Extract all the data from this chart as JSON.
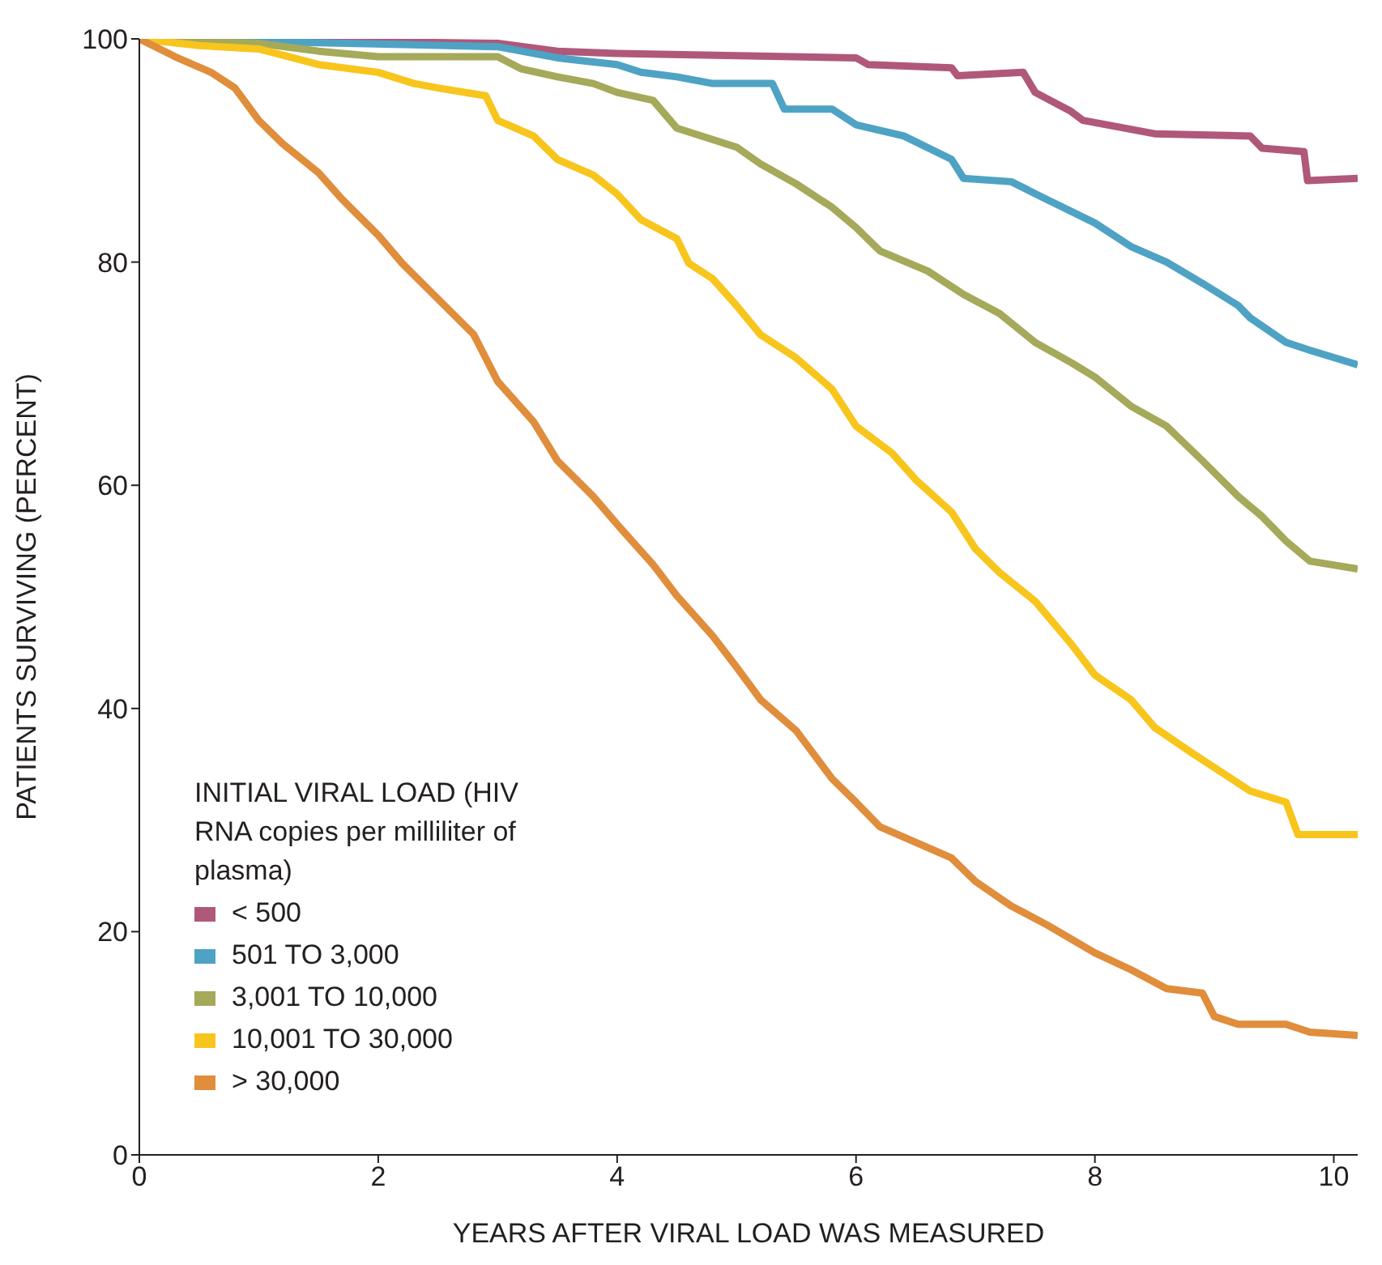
{
  "chart_data": {
    "type": "line",
    "xlabel": "YEARS AFTER VIRAL LOAD WAS MEASURED",
    "ylabel": "PATIENTS SURVIVING (PERCENT)",
    "legend_title": "INITIAL VIRAL LOAD (HIV RNA copies per milliliter of plasma)",
    "legend": "bottom left",
    "grid": false,
    "marker": "none",
    "line_style": "solid",
    "xlim": [
      0,
      10.2
    ],
    "ylim": [
      0,
      100
    ],
    "xticks": [
      0,
      2,
      4,
      6,
      8,
      10
    ],
    "yticks": [
      0,
      20,
      40,
      60,
      80,
      100
    ],
    "series": [
      {
        "name": "< 500",
        "color": "#b0587a",
        "x": [
          0,
          3,
          3.5,
          4,
          6,
          6.1,
          6.8,
          6.85,
          7.4,
          7.5,
          7.8,
          7.9,
          8.5,
          9.3,
          9.4,
          9.75,
          9.78,
          10.2
        ],
        "values": [
          100,
          99.6,
          98.9,
          98.7,
          98.3,
          97.7,
          97.4,
          96.7,
          97,
          95.2,
          93.5,
          92.7,
          91.5,
          91.3,
          90.2,
          89.9,
          87.3,
          87.5
        ]
      },
      {
        "name": "501 TO 3,000",
        "color": "#4ea3c4",
        "x": [
          0,
          3,
          3.5,
          4,
          4.2,
          4.5,
          4.8,
          5.3,
          5.4,
          5.8,
          6,
          6.4,
          6.8,
          6.9,
          7.3,
          7.6,
          8,
          8.3,
          8.6,
          8.9,
          9.2,
          9.3,
          9.6,
          9.8,
          10.2
        ],
        "values": [
          100,
          99.3,
          98.3,
          97.7,
          97,
          96.6,
          96,
          96,
          93.7,
          93.7,
          92.3,
          91.3,
          89.2,
          87.5,
          87.2,
          85.6,
          83.5,
          81.4,
          80,
          78.1,
          76.1,
          75,
          72.8,
          72.1,
          70.8
        ]
      },
      {
        "name": "3,001 TO 10,000",
        "color": "#a5a95a",
        "x": [
          0,
          1,
          1.5,
          2,
          2.5,
          3,
          3.2,
          3.5,
          3.8,
          4,
          4.3,
          4.5,
          5,
          5.2,
          5.5,
          5.8,
          6,
          6.2,
          6.6,
          6.9,
          7.2,
          7.5,
          7.8,
          8,
          8.3,
          8.6,
          8.9,
          9.2,
          9.4,
          9.6,
          9.8,
          10.2
        ],
        "values": [
          100,
          99.6,
          98.9,
          98.4,
          98.4,
          98.4,
          97.3,
          96.6,
          96,
          95.2,
          94.5,
          92,
          90.3,
          88.8,
          87,
          84.9,
          83.1,
          81,
          79.2,
          77.1,
          75.4,
          72.8,
          71,
          69.7,
          67.1,
          65.3,
          62.2,
          59,
          57.2,
          55,
          53.2,
          52.5
        ]
      },
      {
        "name": "10,001 TO 30,000",
        "color": "#f8c51c",
        "x": [
          0,
          0.5,
          1,
          1.5,
          2,
          2.3,
          2.5,
          2.9,
          3,
          3.3,
          3.5,
          3.8,
          4,
          4.2,
          4.5,
          4.6,
          4.8,
          5,
          5.2,
          5.5,
          5.8,
          6,
          6.3,
          6.5,
          6.8,
          7,
          7.2,
          7.5,
          7.8,
          8,
          8.3,
          8.5,
          8.8,
          9,
          9.3,
          9.6,
          9.7,
          10.2
        ],
        "values": [
          100,
          99.4,
          99.1,
          97.7,
          97,
          96,
          95.6,
          94.9,
          92.7,
          91.3,
          89.2,
          87.8,
          86.1,
          83.8,
          82.1,
          79.9,
          78.5,
          76.1,
          73.5,
          71.4,
          68.6,
          65.3,
          62.9,
          60.5,
          57.6,
          54.3,
          52.2,
          49.6,
          45.8,
          43,
          40.8,
          38.3,
          36.1,
          34.7,
          32.6,
          31.6,
          28.7,
          28.7
        ]
      },
      {
        "name": "> 30,000",
        "color": "#e08d3c",
        "x": [
          0,
          0.3,
          0.6,
          0.8,
          1,
          1.2,
          1.5,
          1.7,
          2,
          2.2,
          2.5,
          2.8,
          3,
          3.3,
          3.5,
          3.8,
          4,
          4.3,
          4.5,
          4.8,
          5,
          5.2,
          5.5,
          5.8,
          6,
          6.2,
          6.5,
          6.8,
          7,
          7.3,
          7.6,
          8,
          8.3,
          8.6,
          8.9,
          9,
          9.2,
          9.6,
          9.8,
          10.2
        ],
        "values": [
          100,
          98.4,
          97,
          95.6,
          92.7,
          90.6,
          88,
          85.6,
          82.4,
          79.9,
          76.7,
          73.5,
          69.3,
          65.7,
          62.2,
          59,
          56.5,
          52.9,
          50.1,
          46.5,
          43.7,
          40.8,
          38,
          33.7,
          31.6,
          29.4,
          28,
          26.6,
          24.5,
          22.3,
          20.6,
          18.1,
          16.6,
          14.9,
          14.5,
          12.4,
          11.7,
          11.7,
          11,
          10.7
        ]
      }
    ]
  }
}
